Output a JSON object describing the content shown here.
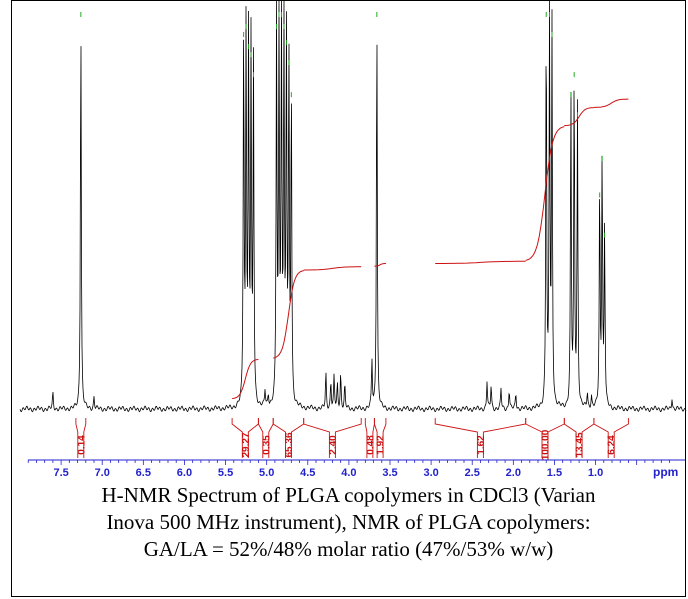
{
  "chart_data": {
    "type": "line",
    "title": "",
    "xlabel": "ppm",
    "ylabel": "",
    "x_reversed": true,
    "xlim": [
      8.0,
      -0.1
    ],
    "x_ticks": [
      7.5,
      7.0,
      6.5,
      6.0,
      5.5,
      5.0,
      4.5,
      4.0,
      3.5,
      3.0,
      2.5,
      2.0,
      1.5,
      1.0
    ],
    "x_tick_labels": [
      "7.5",
      "7.0",
      "6.5",
      "6.0",
      "5.5",
      "5.0",
      "4.5",
      "4.0",
      "3.5",
      "3.0",
      "2.5",
      "2.0",
      "1.5",
      "1.0"
    ],
    "series": [
      {
        "peaks_ppm_height": [
          [
            7.6,
            0.04
          ],
          [
            7.26,
            1.0
          ],
          [
            7.1,
            0.03
          ],
          [
            5.28,
            0.95
          ],
          [
            5.25,
            0.97
          ],
          [
            5.22,
            0.92
          ],
          [
            5.19,
            0.9
          ],
          [
            5.16,
            0.85
          ],
          [
            5.02,
            0.04
          ],
          [
            4.98,
            0.03
          ],
          [
            4.88,
            0.97
          ],
          [
            4.85,
            1.0
          ],
          [
            4.82,
            1.0
          ],
          [
            4.79,
            0.97
          ],
          [
            4.76,
            0.93
          ],
          [
            4.73,
            0.88
          ],
          [
            4.7,
            0.8
          ],
          [
            4.28,
            0.09
          ],
          [
            4.22,
            0.07
          ],
          [
            4.18,
            0.08
          ],
          [
            4.14,
            0.06
          ],
          [
            4.1,
            0.09
          ],
          [
            4.05,
            0.06
          ],
          [
            3.72,
            0.12
          ],
          [
            3.66,
            1.0
          ],
          [
            2.32,
            0.07
          ],
          [
            2.27,
            0.06
          ],
          [
            2.15,
            0.05
          ],
          [
            2.05,
            0.05
          ],
          [
            1.97,
            0.04
          ],
          [
            1.6,
            1.0
          ],
          [
            1.56,
            1.0
          ],
          [
            1.53,
            0.95
          ],
          [
            1.3,
            0.8
          ],
          [
            1.26,
            0.85
          ],
          [
            1.22,
            0.75
          ],
          [
            1.1,
            0.04
          ],
          [
            1.05,
            0.03
          ],
          [
            0.95,
            0.55
          ],
          [
            0.92,
            0.64
          ],
          [
            0.89,
            0.45
          ],
          [
            0.07,
            0.03
          ]
        ]
      }
    ],
    "integrals": [
      {
        "range": [
          7.32,
          7.2
        ],
        "value": "0.14"
      },
      {
        "range": [
          5.42,
          5.1
        ],
        "value": "29.27"
      },
      {
        "range": [
          5.1,
          4.92
        ],
        "value": "0.35"
      },
      {
        "range": [
          4.92,
          4.55
        ],
        "value": "65.36"
      },
      {
        "range": [
          4.55,
          3.85
        ],
        "value": "2.40"
      },
      {
        "range": [
          3.8,
          3.69
        ],
        "value": "0.48"
      },
      {
        "range": [
          3.69,
          3.55
        ],
        "value": "1.92"
      },
      {
        "range": [
          2.95,
          1.85
        ],
        "value": "1.62"
      },
      {
        "range": [
          1.85,
          1.38
        ],
        "value": "100.00"
      },
      {
        "range": [
          1.38,
          1.02
        ],
        "value": "13.45"
      },
      {
        "range": [
          1.02,
          0.6
        ],
        "value": "6.24"
      }
    ]
  },
  "caption": {
    "line1": "H-NMR Spectrum of PLGA copolymers in CDCl3 (Varian",
    "line2": "Inova 500 MHz instrument), NMR of PLGA copolymers:",
    "line3": "GA/LA = 52%/48% molar ratio (47%/53% w/w)"
  },
  "colors": {
    "spectrum": "#000000",
    "integral": "#cc1111",
    "axis": "#2222cc",
    "peak_marker": "#22aa22"
  }
}
